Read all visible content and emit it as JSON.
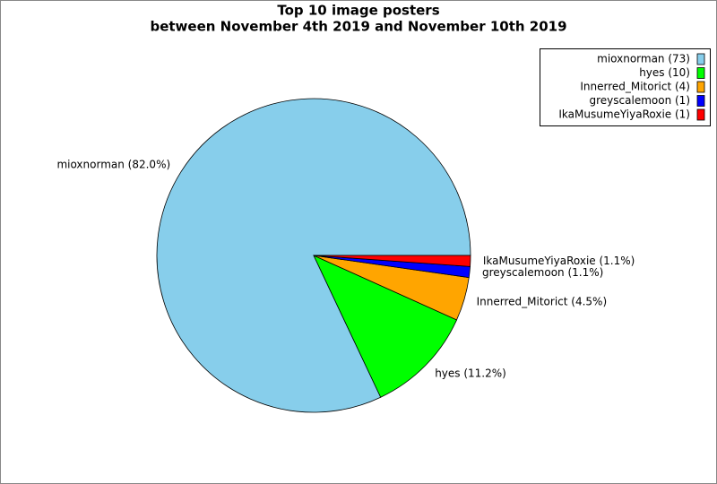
{
  "chart_data": {
    "type": "pie",
    "title": "Top 10 image posters",
    "subtitle": "between November 4th 2019 and November 10th 2019",
    "categories": [
      "mioxnorman",
      "hyes",
      "Innerred_Mitorict",
      "greyscalemoon",
      "IkaMusumeYiyaRoxie"
    ],
    "values": [
      73,
      10,
      4,
      1,
      1
    ],
    "legend_labels": [
      "mioxnorman (73)",
      "hyes (10)",
      "Innerred_Mitorict (4)",
      "greyscalemoon (1)",
      "IkaMusumeYiyaRoxie (1)"
    ],
    "percents": [
      82.0,
      11.2,
      4.5,
      1.1,
      1.1
    ],
    "percent_labels": [
      "mioxnorman (82.0%)",
      "hyes (11.2%)",
      "Innerred_Mitorict (4.5%)",
      "greyscalemoon (1.1%)",
      "IkaMusumeYiyaRoxie (1.1%)"
    ],
    "colors": [
      "#87ceeb",
      "#00ff00",
      "#ffa500",
      "#0000ff",
      "#ff0000"
    ],
    "legend": "upper right"
  }
}
